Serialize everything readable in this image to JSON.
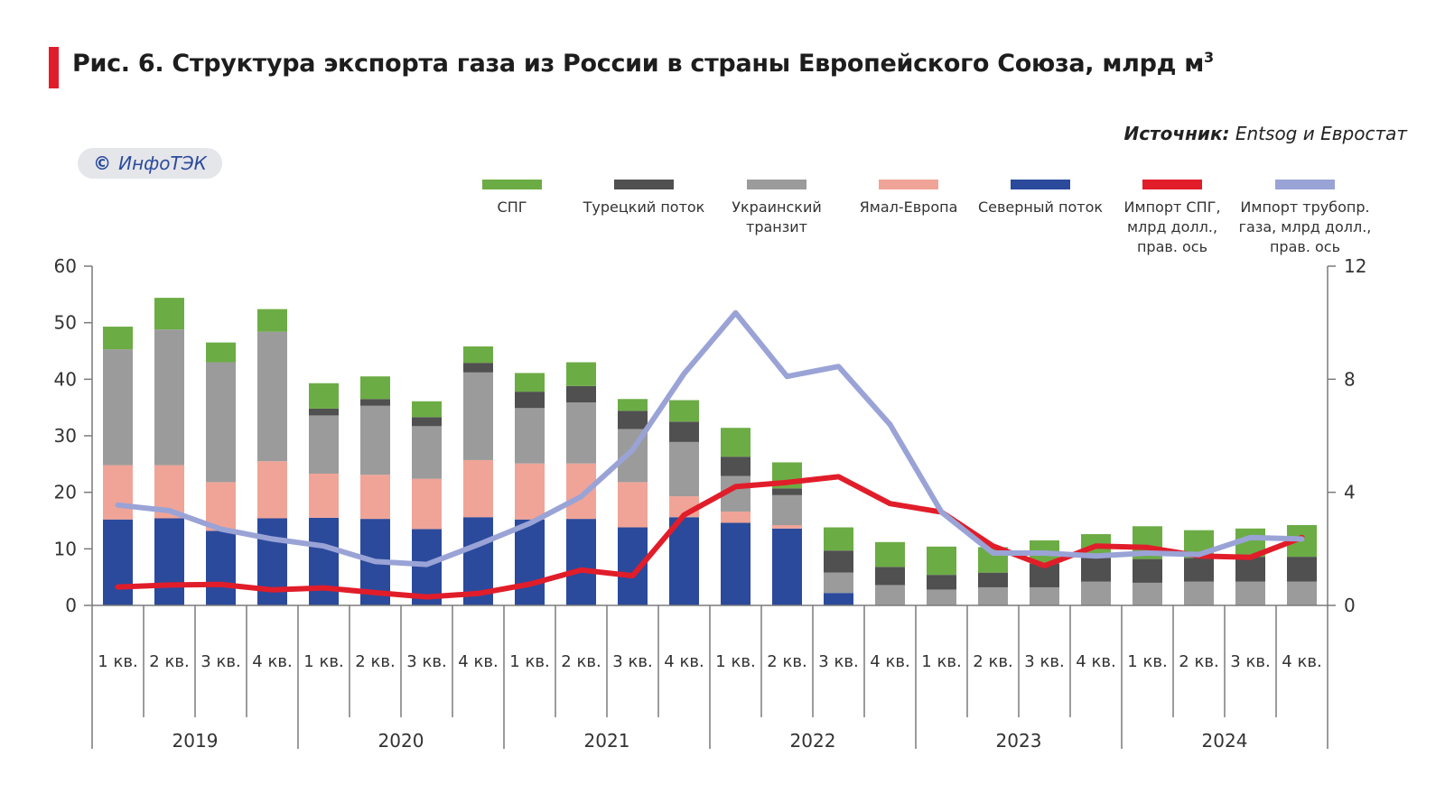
{
  "title": {
    "text": "Рис. 6. Структура экспорта газа из России в страны Европейского Союза, млрд м",
    "sup": "3"
  },
  "source": {
    "label": "Источник:",
    "text": " Entsog и Евростат"
  },
  "badge": {
    "symbol": "©",
    "text": "ИнфоТЭК"
  },
  "chart_data": {
    "type": "bar",
    "stacked": true,
    "categories": [
      "1 кв.",
      "2 кв.",
      "3 кв.",
      "4 кв.",
      "1 кв.",
      "2 кв.",
      "3 кв.",
      "4 кв.",
      "1 кв.",
      "2 кв.",
      "3 кв.",
      "4 кв.",
      "1 кв.",
      "2 кв.",
      "3 кв.",
      "4 кв.",
      "1 кв.",
      "2 кв.",
      "3 кв.",
      "4 кв.",
      "1 кв.",
      "2 кв.",
      "3 кв.",
      "4 кв."
    ],
    "years": [
      "2019",
      "2020",
      "2021",
      "2022",
      "2023",
      "2024"
    ],
    "left_axis": {
      "min": 0,
      "max": 60,
      "ticks": [
        "0",
        "10",
        "20",
        "30",
        "40",
        "50",
        "60"
      ]
    },
    "right_axis": {
      "min": 0,
      "max": 12,
      "ticks": [
        "0",
        "4",
        "8",
        "12"
      ]
    },
    "series": [
      {
        "name": "Северный поток",
        "color": "#2b4a9c",
        "legend": [
          "Северный поток"
        ],
        "values": [
          15.2,
          15.4,
          13.2,
          15.4,
          15.5,
          15.3,
          13.5,
          15.6,
          15.2,
          15.3,
          13.8,
          15.6,
          14.6,
          13.6,
          2.2,
          0,
          0,
          0,
          0,
          0,
          0,
          0,
          0,
          0
        ]
      },
      {
        "name": "Ямал-Европа",
        "color": "#f0a497",
        "legend": [
          "Ямал-Европа"
        ],
        "values": [
          9.6,
          9.4,
          8.6,
          10.1,
          7.8,
          7.8,
          8.9,
          10.1,
          9.9,
          9.8,
          8.0,
          3.7,
          2.0,
          0.6,
          0,
          0,
          0,
          0,
          0,
          0,
          0,
          0,
          0,
          0
        ]
      },
      {
        "name": "Украинский транзит",
        "color": "#9b9b9b",
        "legend": [
          "Украинский",
          "транзит"
        ],
        "values": [
          20.5,
          24.0,
          21.2,
          22.9,
          10.3,
          12.2,
          9.3,
          15.5,
          9.8,
          10.8,
          9.4,
          9.6,
          6.3,
          5.3,
          3.6,
          3.6,
          2.8,
          3.2,
          3.2,
          4.2,
          4.0,
          4.2,
          4.2,
          4.2
        ]
      },
      {
        "name": "Турецкий поток",
        "color": "#505050",
        "legend": [
          "Турецкий поток"
        ],
        "values": [
          0,
          0,
          0,
          0,
          1.2,
          1.2,
          1.6,
          1.7,
          2.9,
          2.9,
          3.2,
          3.6,
          3.4,
          1.2,
          3.9,
          3.2,
          2.6,
          2.6,
          4.2,
          4.2,
          4.2,
          4.2,
          4.4,
          4.4
        ]
      },
      {
        "name": "СПГ",
        "color": "#6cac45",
        "legend": [
          "СПГ"
        ],
        "values": [
          4.0,
          5.6,
          3.5,
          4.0,
          4.5,
          4.0,
          2.8,
          2.9,
          3.3,
          4.2,
          2.1,
          3.8,
          5.1,
          4.6,
          4.1,
          4.4,
          5.0,
          4.5,
          4.1,
          4.2,
          5.8,
          4.9,
          5.0,
          5.6
        ]
      }
    ],
    "lines": [
      {
        "name": "Импорт СПГ, млрд долл., прав. ось",
        "color": "#e11d2a",
        "legend": [
          "Импорт СПГ,",
          "млрд долл.,",
          "прав. ось"
        ],
        "values": [
          0.65,
          0.72,
          0.74,
          0.55,
          0.62,
          0.45,
          0.3,
          0.42,
          0.75,
          1.25,
          1.05,
          3.2,
          4.2,
          4.35,
          4.55,
          3.6,
          3.3,
          2.1,
          1.4,
          2.1,
          2.05,
          1.75,
          1.7,
          2.4
        ]
      },
      {
        "name": "Импорт трубопр. газа, млрд долл., прав. ось",
        "color": "#9aa3d6",
        "legend": [
          "Импорт трубопр.",
          "газа, млрд долл.,",
          "прав. ось"
        ],
        "values": [
          3.55,
          3.35,
          2.7,
          2.35,
          2.1,
          1.55,
          1.45,
          2.15,
          2.9,
          3.85,
          5.5,
          8.2,
          10.35,
          8.1,
          8.45,
          6.4,
          3.3,
          1.85,
          1.85,
          1.75,
          1.85,
          1.8,
          2.4,
          2.35
        ]
      }
    ]
  }
}
